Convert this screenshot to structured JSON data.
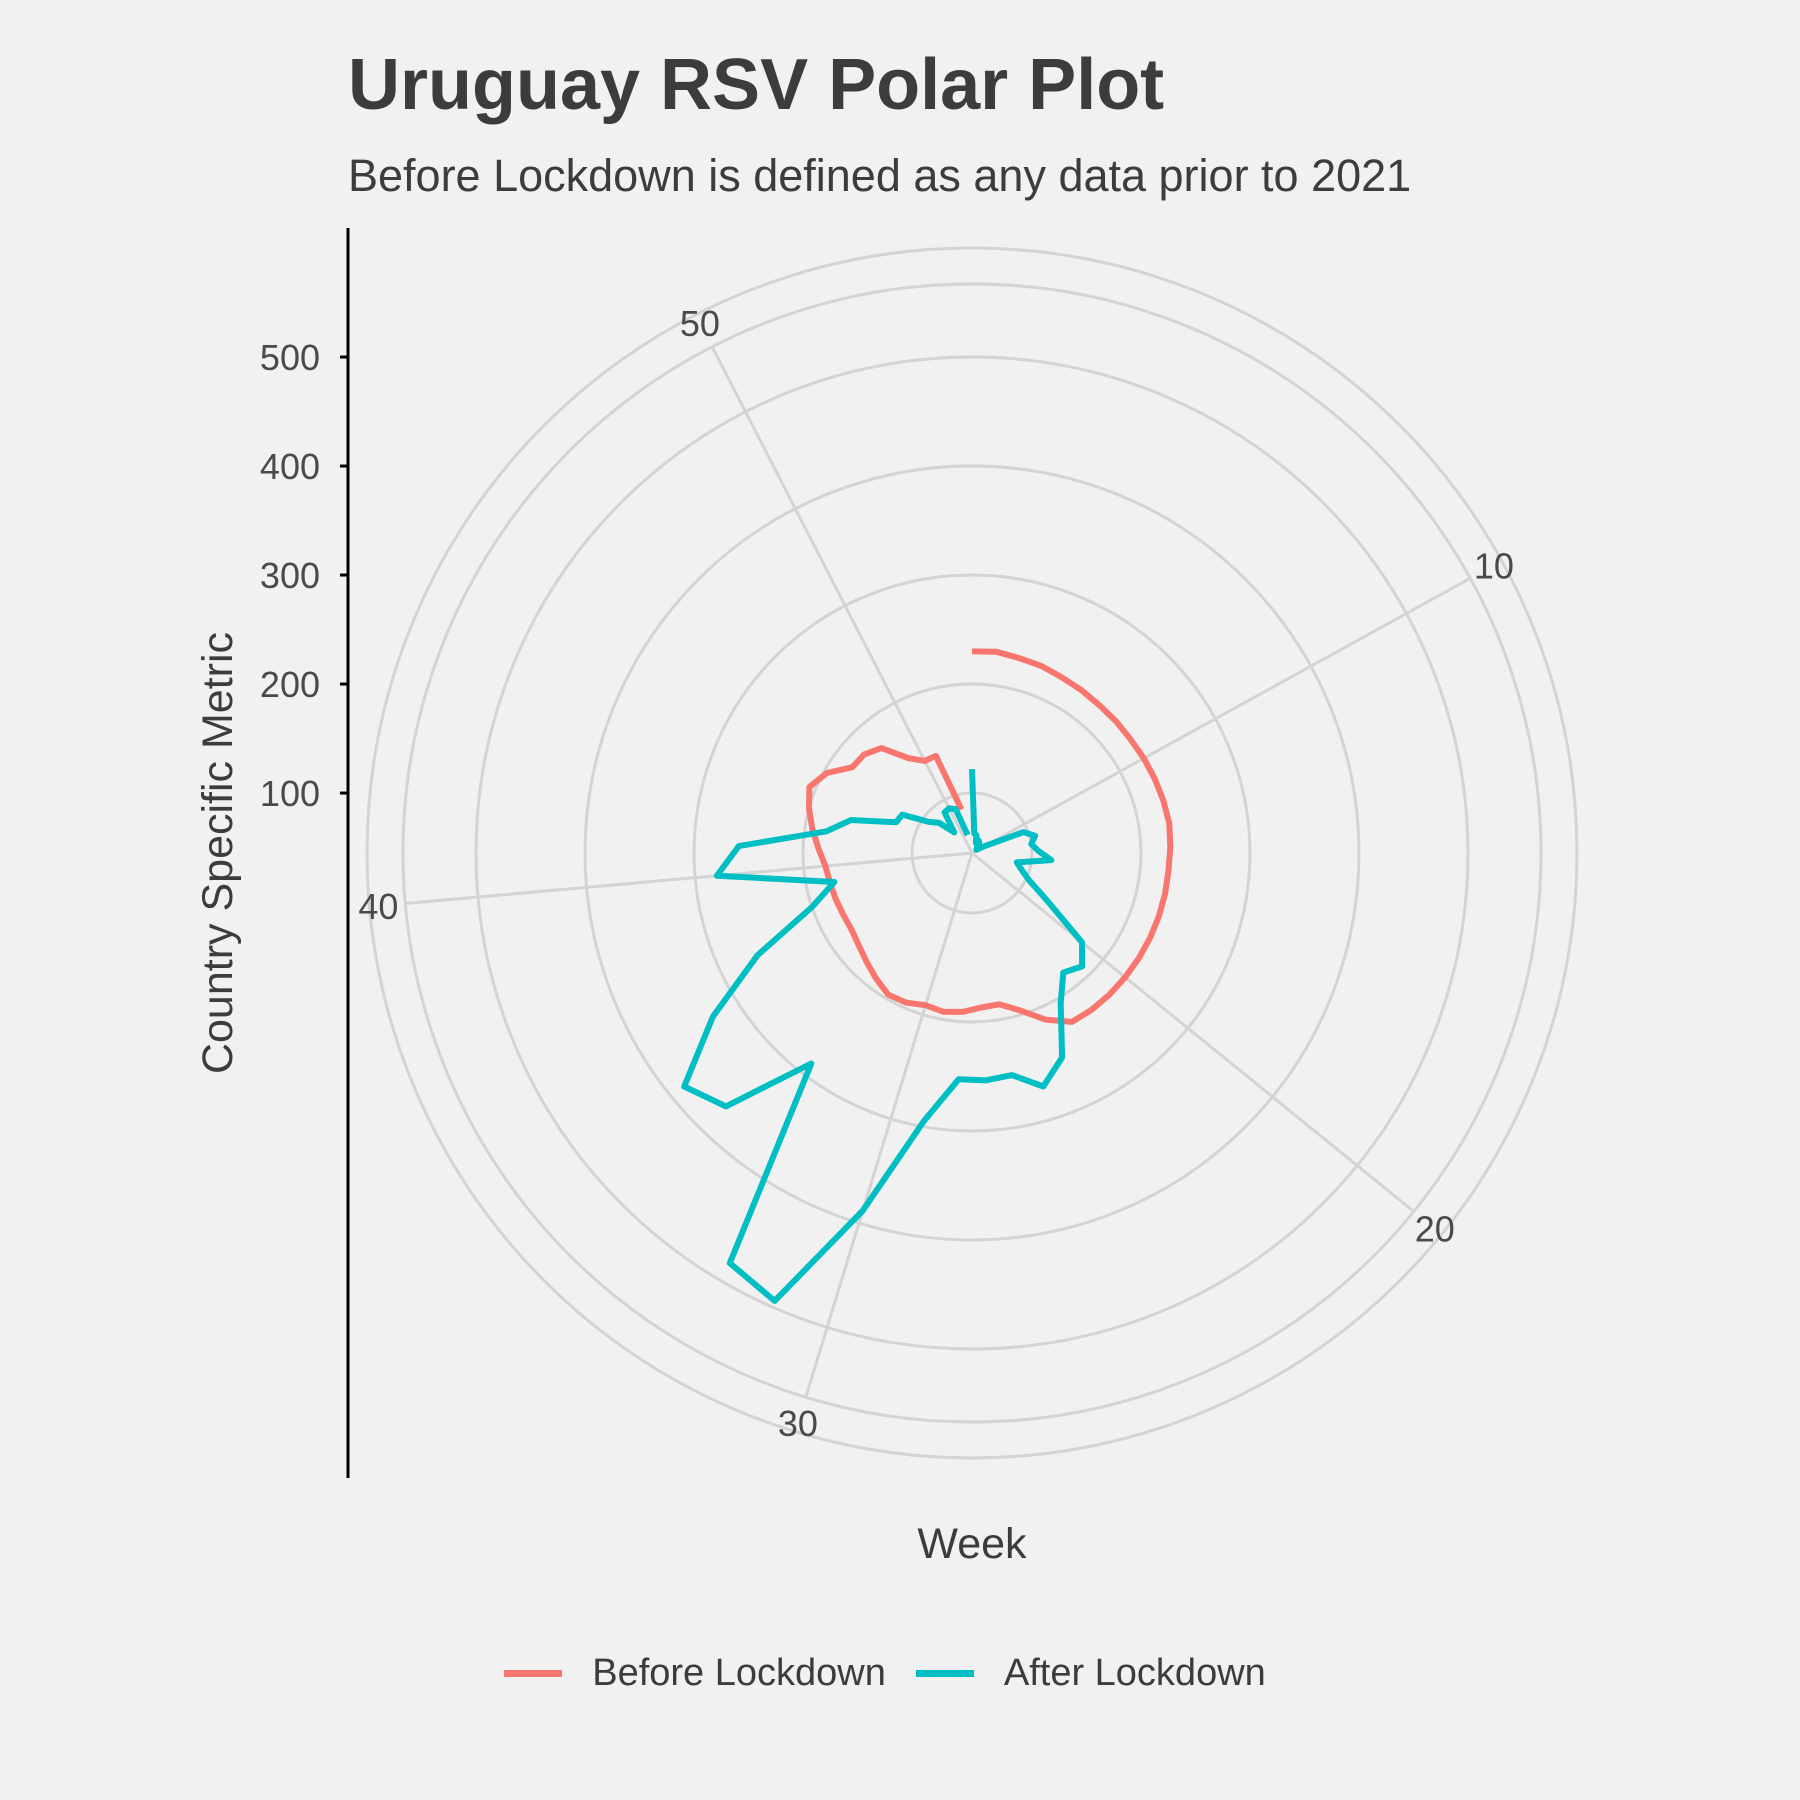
{
  "chart_data": {
    "type": "line",
    "coord": "polar",
    "title": "Uruguay RSV Polar Plot",
    "subtitle": "Before Lockdown is defined as any data prior to 2021",
    "xlabel": "Week",
    "ylabel": "Country Specific Metric",
    "x_ticks": [
      10,
      20,
      30,
      40,
      50
    ],
    "y_ticks": [
      100,
      200,
      300,
      400,
      500
    ],
    "ylim": [
      45,
      600
    ],
    "week_period": 53,
    "grid": true,
    "legend_position": "bottom",
    "series": [
      {
        "name": "Before Lockdown",
        "color": "#f8766d",
        "points": [
          [
            1,
            230
          ],
          [
            2,
            231
          ],
          [
            3,
            229
          ],
          [
            4,
            228
          ],
          [
            5,
            226
          ],
          [
            6,
            225
          ],
          [
            7,
            224
          ],
          [
            8,
            224
          ],
          [
            9,
            224
          ],
          [
            10,
            225
          ],
          [
            11,
            226
          ],
          [
            12,
            227
          ],
          [
            13,
            228
          ],
          [
            14,
            227
          ],
          [
            15,
            226
          ],
          [
            16,
            226
          ],
          [
            17,
            226
          ],
          [
            18,
            226
          ],
          [
            19,
            226
          ],
          [
            20,
            226
          ],
          [
            21,
            226
          ],
          [
            22,
            226
          ],
          [
            23,
            225
          ],
          [
            24,
            212
          ],
          [
            25,
            196
          ],
          [
            26,
            186
          ],
          [
            27,
            187
          ],
          [
            28,
            191
          ],
          [
            29,
            193
          ],
          [
            30,
            191
          ],
          [
            31,
            195
          ],
          [
            32,
            196
          ],
          [
            33,
            190
          ],
          [
            34,
            184
          ],
          [
            35,
            179
          ],
          [
            36,
            176
          ],
          [
            37,
            176
          ],
          [
            38,
            177
          ],
          [
            39,
            178
          ],
          [
            40,
            180
          ],
          [
            41,
            186
          ],
          [
            42,
            193
          ],
          [
            43,
            200
          ],
          [
            44,
            206
          ],
          [
            45,
            197
          ],
          [
            46,
            180
          ],
          [
            47,
            179
          ],
          [
            48,
            172
          ],
          [
            49,
            150
          ],
          [
            50,
            140
          ],
          [
            51,
            140
          ],
          [
            52,
            86
          ]
        ]
      },
      {
        "name": "After Lockdown",
        "color": "#00bfc4",
        "points": [
          [
            1,
            122
          ],
          [
            2,
            63
          ],
          [
            3,
            62
          ],
          [
            4,
            55
          ],
          [
            5,
            58
          ],
          [
            6,
            57
          ],
          [
            7,
            52
          ],
          [
            8,
            52
          ],
          [
            9,
            50
          ],
          [
            10,
            58
          ],
          [
            11,
            96
          ],
          [
            12,
            105
          ],
          [
            13,
            100
          ],
          [
            14,
            106
          ],
          [
            15,
            118
          ],
          [
            16,
            87
          ],
          [
            17,
            93
          ],
          [
            18,
            103
          ],
          [
            19,
            126
          ],
          [
            20,
            175
          ],
          [
            21,
            190
          ],
          [
            22,
            183
          ],
          [
            23,
            205
          ],
          [
            24,
            250
          ],
          [
            25,
            269
          ],
          [
            26,
            252
          ],
          [
            27,
            254
          ],
          [
            28,
            253
          ],
          [
            29,
            295
          ],
          [
            30,
            388
          ],
          [
            31,
            494
          ],
          [
            32,
            482
          ],
          [
            33,
            288
          ],
          [
            34,
            369
          ],
          [
            35,
            385
          ],
          [
            36,
            326
          ],
          [
            37,
            263
          ],
          [
            38,
            200
          ],
          [
            39,
            174
          ],
          [
            40,
            280
          ],
          [
            41,
            259
          ],
          [
            42,
            180
          ],
          [
            43,
            160
          ],
          [
            44,
            120
          ],
          [
            45,
            118
          ],
          [
            46,
            94
          ],
          [
            47,
            86
          ],
          [
            48,
            70
          ],
          [
            49,
            90
          ],
          [
            50,
            91
          ],
          [
            51,
            88
          ],
          [
            52,
            62
          ]
        ]
      }
    ]
  }
}
